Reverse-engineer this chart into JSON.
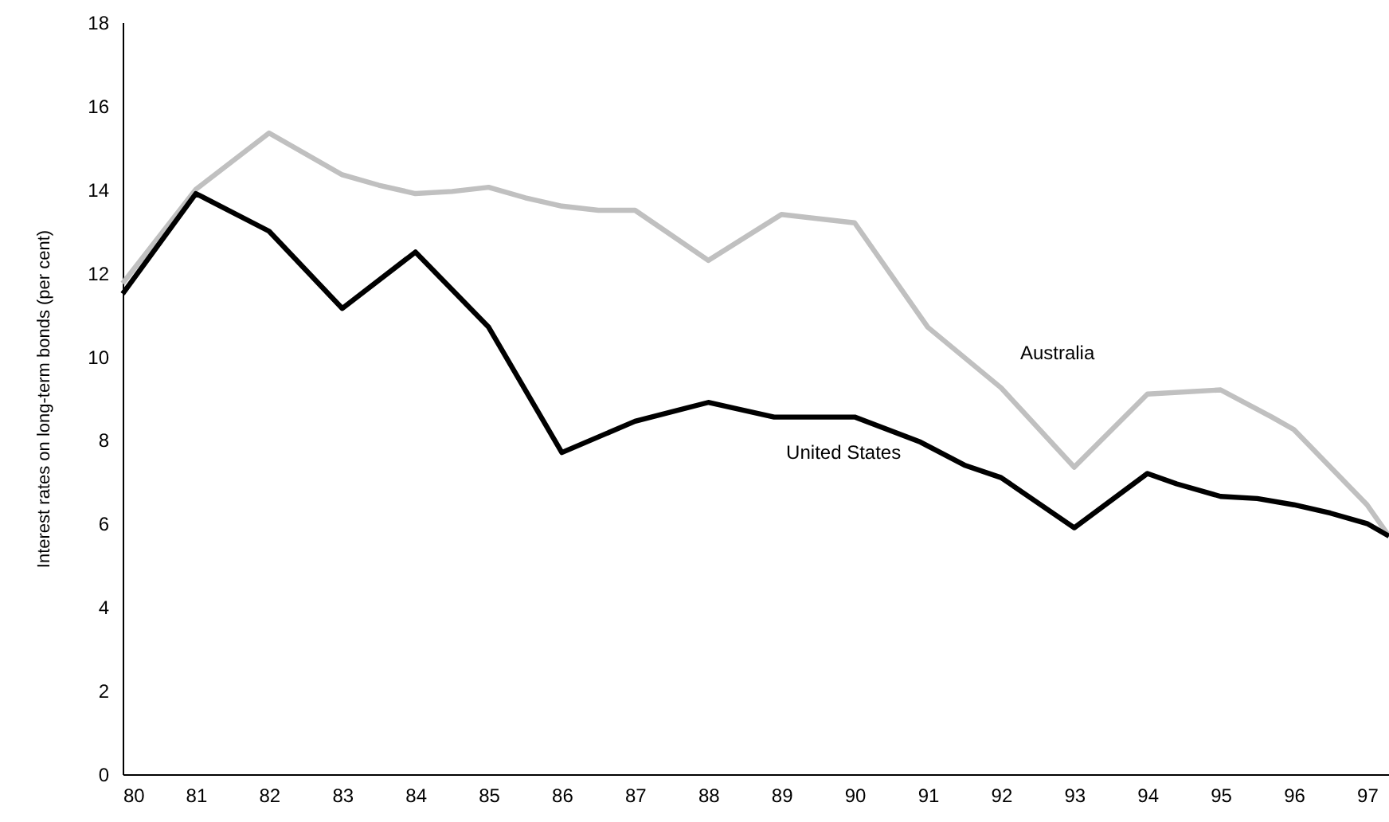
{
  "chart_data": {
    "type": "line",
    "ylabel": "Interest rates on long-term bonds (per cent)",
    "xlim": [
      80,
      97.3
    ],
    "xticks": [
      80,
      81,
      82,
      83,
      84,
      85,
      86,
      87,
      88,
      89,
      90,
      91,
      92,
      93,
      94,
      95,
      96,
      97
    ],
    "ylim": [
      0,
      18
    ],
    "yticks": [
      0,
      2,
      4,
      6,
      8,
      10,
      12,
      14,
      16,
      18
    ],
    "grid": false,
    "marker": "none",
    "line_style": "solid",
    "series": [
      {
        "name": "Australia",
        "color": "#c0c0c0",
        "x": [
          80,
          81,
          82,
          83,
          83.5,
          84,
          84.5,
          85,
          85.5,
          86,
          86.5,
          87,
          88,
          89,
          90,
          91,
          92,
          93,
          94,
          95,
          95.7,
          96,
          97,
          97.3
        ],
        "values": [
          11.75,
          14.0,
          15.35,
          14.35,
          14.1,
          13.9,
          13.95,
          14.05,
          13.8,
          13.6,
          13.5,
          13.5,
          12.3,
          13.4,
          13.2,
          10.7,
          9.25,
          7.35,
          9.1,
          9.2,
          8.55,
          8.25,
          6.45,
          5.7
        ]
      },
      {
        "name": "United States",
        "color": "#000000",
        "x": [
          80,
          81,
          82,
          83,
          84,
          85,
          86,
          87,
          88,
          88.9,
          89.5,
          90,
          90.9,
          91.5,
          92,
          92.5,
          93,
          94,
          94.4,
          95,
          95.5,
          96,
          96.5,
          97,
          97.3
        ],
        "values": [
          11.5,
          13.9,
          13.0,
          11.15,
          12.5,
          10.7,
          7.7,
          8.45,
          8.9,
          8.55,
          8.55,
          8.55,
          7.95,
          7.4,
          7.1,
          6.5,
          5.9,
          7.2,
          6.95,
          6.65,
          6.6,
          6.45,
          6.25,
          6.0,
          5.7
        ]
      }
    ]
  }
}
